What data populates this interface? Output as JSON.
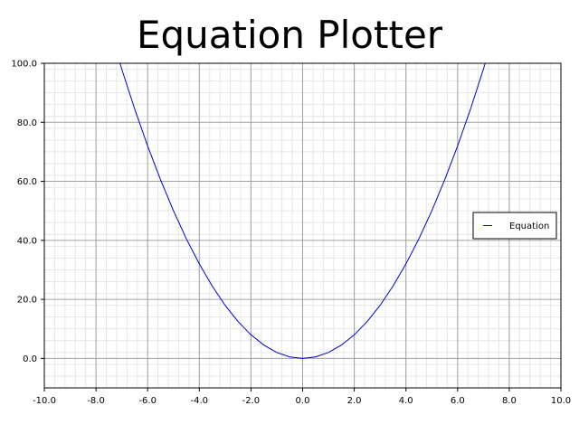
{
  "title": "Equation Plotter",
  "chart_data": {
    "type": "line",
    "title": "Equation Plotter",
    "xlabel": "",
    "ylabel": "",
    "xlim": [
      -10,
      10
    ],
    "ylim": [
      -10,
      100
    ],
    "x_ticks": [
      -10,
      -8,
      -6,
      -4,
      -2,
      0,
      2,
      4,
      6,
      8,
      10
    ],
    "x_tick_labels": [
      "-10.0",
      "-8.0",
      "-6.0",
      "-4.0",
      "-2.0",
      "0.0",
      "2.0",
      "4.0",
      "6.0",
      "8.0",
      "10.0"
    ],
    "y_ticks": [
      0,
      20,
      40,
      60,
      80,
      100
    ],
    "y_tick_labels": [
      "0.0",
      "20.0",
      "40.0",
      "60.0",
      "80.0",
      "100.0"
    ],
    "grid": true,
    "legend_position": "right",
    "series": [
      {
        "name": "Equation",
        "color": "#0000cc",
        "x": [
          -10,
          -9,
          -8,
          -7.5,
          -7.07,
          -7,
          -6.5,
          -6,
          -5.5,
          -5,
          -4.5,
          -4,
          -3.5,
          -3,
          -2.5,
          -2,
          -1.5,
          -1,
          -0.5,
          0,
          0.5,
          1,
          1.5,
          2,
          2.5,
          3,
          3.5,
          4,
          4.5,
          5,
          5.5,
          6,
          6.5,
          7,
          7.07,
          7.5,
          8,
          9,
          10
        ],
        "y": [
          100,
          100,
          100,
          100,
          100,
          98,
          84.5,
          72,
          60.5,
          50,
          40.5,
          32,
          24.5,
          18,
          12.5,
          8,
          4.5,
          2,
          0.5,
          0,
          0.5,
          2,
          4.5,
          8,
          12.5,
          18,
          24.5,
          32,
          40.5,
          50,
          60.5,
          72,
          84.5,
          98,
          100,
          100,
          100,
          100,
          100
        ]
      }
    ]
  }
}
